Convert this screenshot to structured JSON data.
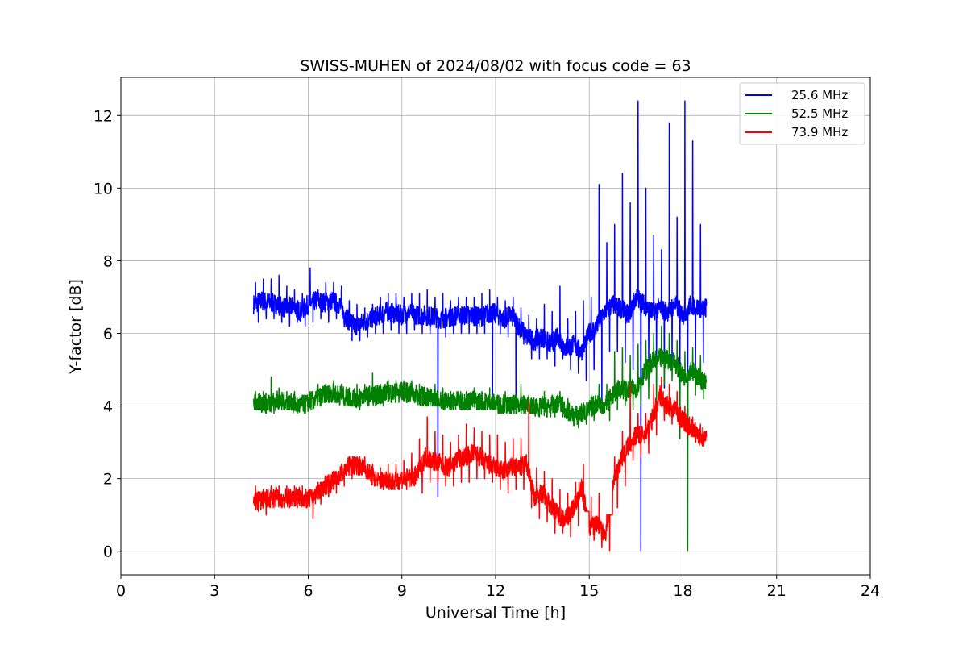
{
  "chart_data": {
    "type": "line",
    "title": "SWISS-MUHEN of 2024/08/02 with focus code = 63",
    "xlabel": "Universal Time [h]",
    "ylabel": "Y-factor [dB]",
    "xlim": [
      0,
      24
    ],
    "ylim": [
      -0.65,
      13.05
    ],
    "xticks": [
      0,
      3,
      6,
      9,
      12,
      15,
      18,
      21,
      24
    ],
    "yticks": [
      0,
      2,
      4,
      6,
      8,
      10,
      12
    ],
    "grid": true,
    "legend_position": "top-right",
    "series": [
      {
        "name": "25.6 MHz",
        "color": "#0000ff",
        "x": [
          4.25,
          4.5,
          4.75,
          5.0,
          5.25,
          5.5,
          5.75,
          6.0,
          6.25,
          6.5,
          6.75,
          7.0,
          7.25,
          7.5,
          7.75,
          8.0,
          8.25,
          8.5,
          8.75,
          9.0,
          9.25,
          9.5,
          9.75,
          10.0,
          10.25,
          10.5,
          10.75,
          11.0,
          11.25,
          11.5,
          11.75,
          12.0,
          12.25,
          12.5,
          12.75,
          13.0,
          13.25,
          13.5,
          13.75,
          14.0,
          14.25,
          14.5,
          14.75,
          15.0,
          15.25,
          15.5,
          15.75,
          16.0,
          16.25,
          16.5,
          16.75,
          17.0,
          17.25,
          17.5,
          17.75,
          18.0,
          18.25,
          18.5,
          18.75
        ],
        "mid": [
          6.8,
          6.9,
          6.85,
          6.8,
          6.7,
          6.75,
          6.6,
          6.8,
          6.9,
          6.85,
          6.9,
          6.8,
          6.4,
          6.2,
          6.3,
          6.4,
          6.5,
          6.6,
          6.55,
          6.5,
          6.6,
          6.5,
          6.5,
          6.45,
          6.4,
          6.45,
          6.5,
          6.5,
          6.5,
          6.45,
          6.55,
          6.55,
          6.4,
          6.5,
          6.2,
          5.9,
          5.8,
          5.9,
          5.7,
          5.9,
          5.6,
          5.7,
          5.5,
          6.0,
          6.2,
          6.6,
          6.8,
          6.7,
          6.5,
          7.0,
          6.8,
          6.6,
          6.7,
          6.6,
          6.8,
          6.5,
          6.8,
          6.7,
          6.7
        ],
        "low": [
          6.3,
          6.4,
          6.4,
          6.3,
          6.2,
          6.3,
          6.2,
          6.3,
          6.4,
          6.3,
          6.4,
          6.2,
          5.8,
          5.8,
          5.9,
          6.0,
          6.0,
          6.1,
          6.0,
          6.0,
          6.1,
          6.0,
          6.0,
          1.5,
          5.9,
          6.0,
          6.0,
          6.0,
          6.0,
          6.0,
          3.9,
          6.0,
          5.9,
          3.8,
          5.7,
          5.3,
          5.3,
          5.3,
          5.1,
          5.3,
          5.0,
          4.9,
          4.7,
          5.0,
          4.0,
          5.5,
          5.5,
          5.2,
          5.0,
          0.0,
          5.2,
          5.2,
          4.5,
          5.0,
          5.0,
          3.5,
          5.0,
          5.2,
          6.0
        ],
        "high": [
          7.4,
          7.5,
          7.5,
          7.6,
          7.3,
          7.2,
          7.1,
          7.8,
          7.2,
          7.4,
          7.4,
          7.3,
          6.9,
          6.8,
          6.7,
          6.8,
          7.0,
          7.1,
          7.1,
          7.0,
          7.1,
          7.1,
          7.2,
          7.0,
          7.1,
          6.9,
          7.0,
          7.0,
          7.0,
          7.1,
          7.2,
          7.0,
          6.9,
          7.0,
          6.7,
          6.5,
          6.4,
          6.8,
          6.6,
          7.3,
          6.4,
          6.6,
          6.9,
          7.0,
          10.1,
          8.5,
          9.0,
          10.4,
          9.6,
          12.4,
          10.0,
          8.7,
          8.3,
          11.8,
          9.2,
          12.4,
          11.3,
          9.0,
          7.7
        ]
      },
      {
        "name": "52.5 MHz",
        "color": "#008000",
        "x": [
          4.25,
          4.5,
          4.75,
          5.0,
          5.25,
          5.5,
          5.75,
          6.0,
          6.25,
          6.5,
          6.75,
          7.0,
          7.25,
          7.5,
          7.75,
          8.0,
          8.25,
          8.5,
          8.75,
          9.0,
          9.25,
          9.5,
          9.75,
          10.0,
          10.25,
          10.5,
          10.75,
          11.0,
          11.25,
          11.5,
          11.75,
          12.0,
          12.25,
          12.5,
          12.75,
          13.0,
          13.25,
          13.5,
          13.75,
          14.0,
          14.25,
          14.5,
          14.75,
          15.0,
          15.25,
          15.5,
          15.75,
          16.0,
          16.25,
          16.5,
          16.75,
          17.0,
          17.25,
          17.5,
          17.75,
          18.0,
          18.25,
          18.5,
          18.75
        ],
        "mid": [
          4.1,
          4.05,
          4.1,
          4.15,
          4.1,
          4.05,
          4.0,
          4.1,
          4.2,
          4.3,
          4.35,
          4.3,
          4.25,
          4.2,
          4.25,
          4.3,
          4.3,
          4.4,
          4.35,
          4.4,
          4.35,
          4.3,
          4.25,
          4.2,
          4.15,
          4.1,
          4.15,
          4.1,
          4.15,
          4.1,
          4.1,
          4.05,
          4.05,
          4.0,
          4.1,
          4.0,
          3.95,
          4.0,
          3.95,
          4.1,
          3.9,
          3.7,
          3.8,
          3.9,
          4.1,
          4.0,
          4.3,
          4.5,
          4.4,
          4.5,
          4.9,
          5.2,
          5.3,
          5.3,
          5.2,
          4.8,
          5.0,
          4.8,
          4.6
        ],
        "low": [
          3.9,
          3.8,
          3.8,
          3.9,
          3.9,
          3.8,
          3.8,
          3.9,
          4.0,
          4.1,
          4.1,
          4.0,
          4.0,
          3.9,
          4.0,
          4.0,
          4.0,
          4.1,
          4.1,
          4.1,
          4.1,
          4.0,
          4.0,
          4.0,
          3.9,
          3.9,
          3.9,
          3.9,
          3.9,
          3.9,
          3.9,
          3.8,
          3.8,
          3.8,
          3.8,
          3.8,
          3.7,
          3.7,
          3.7,
          3.7,
          3.6,
          3.4,
          3.5,
          3.6,
          3.8,
          3.6,
          3.9,
          4.0,
          3.9,
          4.0,
          4.2,
          3.6,
          4.6,
          4.7,
          3.1,
          0.0,
          4.3,
          4.2,
          4.1
        ],
        "high": [
          4.4,
          4.4,
          4.8,
          4.5,
          4.4,
          4.4,
          4.3,
          4.4,
          4.6,
          4.6,
          4.7,
          4.6,
          4.5,
          4.6,
          4.6,
          4.9,
          4.6,
          4.7,
          4.7,
          4.7,
          4.7,
          4.6,
          4.5,
          4.6,
          4.5,
          4.4,
          4.4,
          4.4,
          4.5,
          4.4,
          4.5,
          4.3,
          4.4,
          4.3,
          4.6,
          4.3,
          4.2,
          4.4,
          4.3,
          4.4,
          4.2,
          4.0,
          4.1,
          4.3,
          4.6,
          4.6,
          5.5,
          5.6,
          5.4,
          5.7,
          5.8,
          6.0,
          6.2,
          6.0,
          5.8,
          5.5,
          5.6,
          5.4,
          5.0
        ]
      },
      {
        "name": "73.9 MHz",
        "color": "#ff0000",
        "x": [
          4.25,
          4.5,
          4.75,
          5.0,
          5.25,
          5.5,
          5.75,
          6.0,
          6.25,
          6.5,
          6.75,
          7.0,
          7.25,
          7.5,
          7.75,
          8.0,
          8.25,
          8.5,
          8.75,
          9.0,
          9.25,
          9.5,
          9.75,
          10.0,
          10.25,
          10.5,
          10.75,
          11.0,
          11.25,
          11.5,
          11.75,
          12.0,
          12.25,
          12.5,
          12.75,
          13.0,
          13.25,
          13.5,
          13.75,
          14.0,
          14.25,
          14.5,
          14.75,
          15.0,
          15.25,
          15.5,
          15.75,
          16.0,
          16.25,
          16.5,
          16.75,
          17.0,
          17.25,
          17.5,
          17.75,
          18.0,
          18.25,
          18.5,
          18.75
        ],
        "mid": [
          1.4,
          1.4,
          1.45,
          1.5,
          1.45,
          1.5,
          1.5,
          1.4,
          1.6,
          1.8,
          1.9,
          2.1,
          2.3,
          2.4,
          2.3,
          2.1,
          1.9,
          2.0,
          1.9,
          2.0,
          2.0,
          2.1,
          2.6,
          2.5,
          2.4,
          2.3,
          2.5,
          2.6,
          2.7,
          2.6,
          2.4,
          2.3,
          2.2,
          2.3,
          2.3,
          2.4,
          1.5,
          1.6,
          1.3,
          1.0,
          0.9,
          1.2,
          1.8,
          0.6,
          0.8,
          0.4,
          1.8,
          2.5,
          2.9,
          3.2,
          3.2,
          3.6,
          4.3,
          4.0,
          3.9,
          3.6,
          3.4,
          3.2,
          3.1
        ],
        "low": [
          1.1,
          1.0,
          1.2,
          1.2,
          1.2,
          1.2,
          1.2,
          0.9,
          1.3,
          1.5,
          1.6,
          1.8,
          2.0,
          2.1,
          2.0,
          1.8,
          1.7,
          1.7,
          1.7,
          1.7,
          1.8,
          1.6,
          1.9,
          1.9,
          1.8,
          1.8,
          1.9,
          1.9,
          2.0,
          2.0,
          1.9,
          1.7,
          1.6,
          1.7,
          1.7,
          1.2,
          0.9,
          0.8,
          0.5,
          0.5,
          0.4,
          0.7,
          1.1,
          0.3,
          0.1,
          0.0,
          1.2,
          1.8,
          2.5,
          2.6,
          2.7,
          3.2,
          3.6,
          3.5,
          3.4,
          3.2,
          3.0,
          2.9,
          2.9
        ],
        "high": [
          1.8,
          1.7,
          1.8,
          1.8,
          1.8,
          1.8,
          1.8,
          1.7,
          1.9,
          2.1,
          2.2,
          2.4,
          2.6,
          2.6,
          2.6,
          2.4,
          2.3,
          2.4,
          2.4,
          2.5,
          2.7,
          3.1,
          3.7,
          3.3,
          3.2,
          3.0,
          3.2,
          3.5,
          3.4,
          3.3,
          3.2,
          3.2,
          3.0,
          3.1,
          3.1,
          4.1,
          2.3,
          2.2,
          2.0,
          1.7,
          1.6,
          1.9,
          2.4,
          1.5,
          1.6,
          1.0,
          2.6,
          3.3,
          4.6,
          3.8,
          3.8,
          4.6,
          4.8,
          4.6,
          4.4,
          4.0,
          3.7,
          3.5,
          3.4
        ]
      }
    ]
  }
}
